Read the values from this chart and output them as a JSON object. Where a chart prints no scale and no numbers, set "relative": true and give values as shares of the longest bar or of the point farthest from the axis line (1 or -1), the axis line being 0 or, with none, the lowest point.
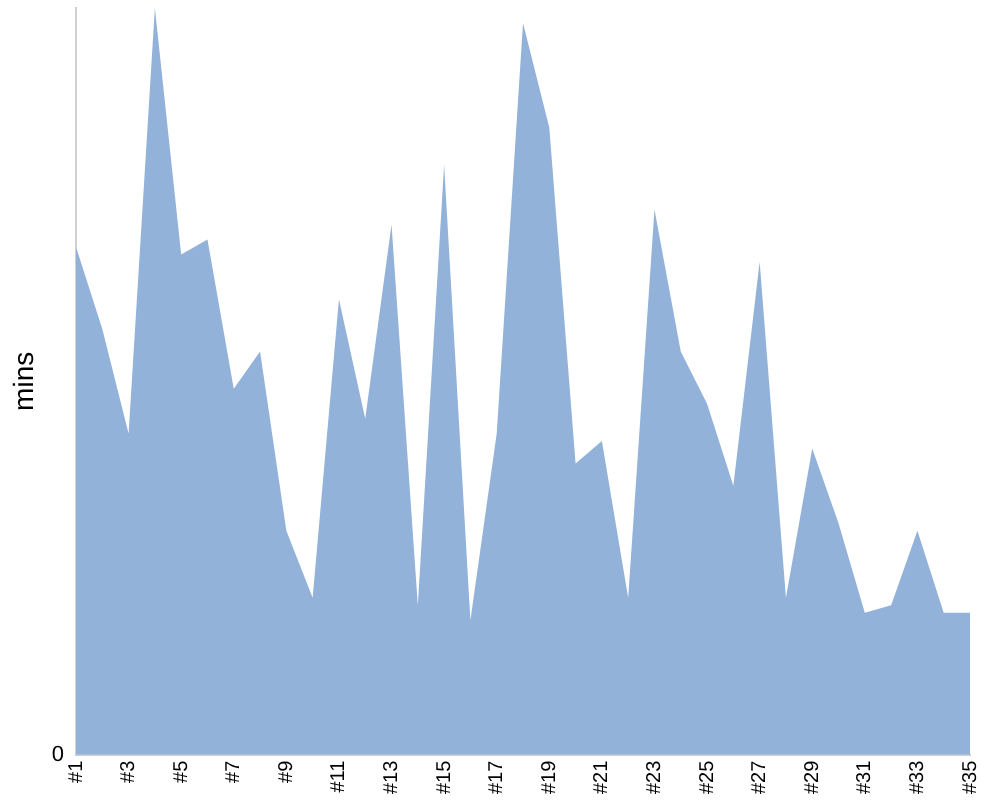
{
  "chart_data": {
    "type": "area",
    "ylabel": "mins",
    "relative": true,
    "annotations": [
      "0"
    ],
    "grid": false,
    "legend": false,
    "categories": [
      "#1",
      null,
      "#3",
      null,
      "#5",
      null,
      "#7",
      null,
      "#9",
      null,
      "#11",
      null,
      "#13",
      null,
      "#15",
      null,
      "#17",
      null,
      "#19",
      null,
      "#21",
      null,
      "#23",
      null,
      "#25",
      null,
      "#27",
      null,
      "#29",
      null,
      "#31",
      null,
      "#33",
      null,
      "#35"
    ],
    "series": [
      {
        "color": "#92b2da",
        "values": [
          0.68,
          0.57,
          0.43,
          1,
          0.67,
          0.69,
          0.49,
          0.54,
          0.3,
          0.21,
          0.61,
          0.45,
          0.71,
          0.2,
          0.79,
          0.18,
          0.43,
          0.98,
          0.84,
          0.39,
          0.42,
          0.21,
          0.73,
          0.54,
          0.47,
          0.36,
          0.66,
          0.21,
          0.41,
          0.31,
          0.19,
          0.2,
          0.3,
          0.19,
          0.19
        ]
      }
    ]
  }
}
